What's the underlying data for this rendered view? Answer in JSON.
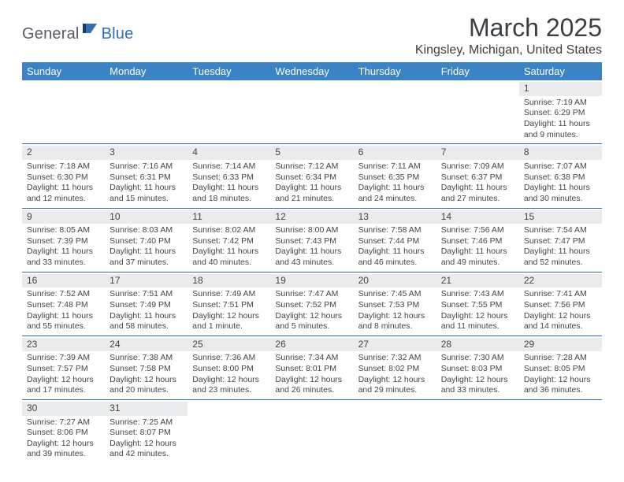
{
  "logo": {
    "text1": "General",
    "text2": "Blue",
    "accent_color": "#2f6fb2"
  },
  "title": "March 2025",
  "location": "Kingsley, Michigan, United States",
  "colors": {
    "header_bg": "#3b83c7",
    "header_text": "#ffffff",
    "row_divider": "#2f6fb2",
    "daynum_bg": "#e9ebec",
    "body_text": "#444444",
    "page_bg": "#ffffff"
  },
  "dayHeaders": [
    "Sunday",
    "Monday",
    "Tuesday",
    "Wednesday",
    "Thursday",
    "Friday",
    "Saturday"
  ],
  "weeks": [
    [
      null,
      null,
      null,
      null,
      null,
      null,
      {
        "n": "1",
        "sunrise": "Sunrise: 7:19 AM",
        "sunset": "Sunset: 6:29 PM",
        "daylight": "Daylight: 11 hours and 9 minutes."
      }
    ],
    [
      {
        "n": "2",
        "sunrise": "Sunrise: 7:18 AM",
        "sunset": "Sunset: 6:30 PM",
        "daylight": "Daylight: 11 hours and 12 minutes."
      },
      {
        "n": "3",
        "sunrise": "Sunrise: 7:16 AM",
        "sunset": "Sunset: 6:31 PM",
        "daylight": "Daylight: 11 hours and 15 minutes."
      },
      {
        "n": "4",
        "sunrise": "Sunrise: 7:14 AM",
        "sunset": "Sunset: 6:33 PM",
        "daylight": "Daylight: 11 hours and 18 minutes."
      },
      {
        "n": "5",
        "sunrise": "Sunrise: 7:12 AM",
        "sunset": "Sunset: 6:34 PM",
        "daylight": "Daylight: 11 hours and 21 minutes."
      },
      {
        "n": "6",
        "sunrise": "Sunrise: 7:11 AM",
        "sunset": "Sunset: 6:35 PM",
        "daylight": "Daylight: 11 hours and 24 minutes."
      },
      {
        "n": "7",
        "sunrise": "Sunrise: 7:09 AM",
        "sunset": "Sunset: 6:37 PM",
        "daylight": "Daylight: 11 hours and 27 minutes."
      },
      {
        "n": "8",
        "sunrise": "Sunrise: 7:07 AM",
        "sunset": "Sunset: 6:38 PM",
        "daylight": "Daylight: 11 hours and 30 minutes."
      }
    ],
    [
      {
        "n": "9",
        "sunrise": "Sunrise: 8:05 AM",
        "sunset": "Sunset: 7:39 PM",
        "daylight": "Daylight: 11 hours and 33 minutes."
      },
      {
        "n": "10",
        "sunrise": "Sunrise: 8:03 AM",
        "sunset": "Sunset: 7:40 PM",
        "daylight": "Daylight: 11 hours and 37 minutes."
      },
      {
        "n": "11",
        "sunrise": "Sunrise: 8:02 AM",
        "sunset": "Sunset: 7:42 PM",
        "daylight": "Daylight: 11 hours and 40 minutes."
      },
      {
        "n": "12",
        "sunrise": "Sunrise: 8:00 AM",
        "sunset": "Sunset: 7:43 PM",
        "daylight": "Daylight: 11 hours and 43 minutes."
      },
      {
        "n": "13",
        "sunrise": "Sunrise: 7:58 AM",
        "sunset": "Sunset: 7:44 PM",
        "daylight": "Daylight: 11 hours and 46 minutes."
      },
      {
        "n": "14",
        "sunrise": "Sunrise: 7:56 AM",
        "sunset": "Sunset: 7:46 PM",
        "daylight": "Daylight: 11 hours and 49 minutes."
      },
      {
        "n": "15",
        "sunrise": "Sunrise: 7:54 AM",
        "sunset": "Sunset: 7:47 PM",
        "daylight": "Daylight: 11 hours and 52 minutes."
      }
    ],
    [
      {
        "n": "16",
        "sunrise": "Sunrise: 7:52 AM",
        "sunset": "Sunset: 7:48 PM",
        "daylight": "Daylight: 11 hours and 55 minutes."
      },
      {
        "n": "17",
        "sunrise": "Sunrise: 7:51 AM",
        "sunset": "Sunset: 7:49 PM",
        "daylight": "Daylight: 11 hours and 58 minutes."
      },
      {
        "n": "18",
        "sunrise": "Sunrise: 7:49 AM",
        "sunset": "Sunset: 7:51 PM",
        "daylight": "Daylight: 12 hours and 1 minute."
      },
      {
        "n": "19",
        "sunrise": "Sunrise: 7:47 AM",
        "sunset": "Sunset: 7:52 PM",
        "daylight": "Daylight: 12 hours and 5 minutes."
      },
      {
        "n": "20",
        "sunrise": "Sunrise: 7:45 AM",
        "sunset": "Sunset: 7:53 PM",
        "daylight": "Daylight: 12 hours and 8 minutes."
      },
      {
        "n": "21",
        "sunrise": "Sunrise: 7:43 AM",
        "sunset": "Sunset: 7:55 PM",
        "daylight": "Daylight: 12 hours and 11 minutes."
      },
      {
        "n": "22",
        "sunrise": "Sunrise: 7:41 AM",
        "sunset": "Sunset: 7:56 PM",
        "daylight": "Daylight: 12 hours and 14 minutes."
      }
    ],
    [
      {
        "n": "23",
        "sunrise": "Sunrise: 7:39 AM",
        "sunset": "Sunset: 7:57 PM",
        "daylight": "Daylight: 12 hours and 17 minutes."
      },
      {
        "n": "24",
        "sunrise": "Sunrise: 7:38 AM",
        "sunset": "Sunset: 7:58 PM",
        "daylight": "Daylight: 12 hours and 20 minutes."
      },
      {
        "n": "25",
        "sunrise": "Sunrise: 7:36 AM",
        "sunset": "Sunset: 8:00 PM",
        "daylight": "Daylight: 12 hours and 23 minutes."
      },
      {
        "n": "26",
        "sunrise": "Sunrise: 7:34 AM",
        "sunset": "Sunset: 8:01 PM",
        "daylight": "Daylight: 12 hours and 26 minutes."
      },
      {
        "n": "27",
        "sunrise": "Sunrise: 7:32 AM",
        "sunset": "Sunset: 8:02 PM",
        "daylight": "Daylight: 12 hours and 29 minutes."
      },
      {
        "n": "28",
        "sunrise": "Sunrise: 7:30 AM",
        "sunset": "Sunset: 8:03 PM",
        "daylight": "Daylight: 12 hours and 33 minutes."
      },
      {
        "n": "29",
        "sunrise": "Sunrise: 7:28 AM",
        "sunset": "Sunset: 8:05 PM",
        "daylight": "Daylight: 12 hours and 36 minutes."
      }
    ],
    [
      {
        "n": "30",
        "sunrise": "Sunrise: 7:27 AM",
        "sunset": "Sunset: 8:06 PM",
        "daylight": "Daylight: 12 hours and 39 minutes."
      },
      {
        "n": "31",
        "sunrise": "Sunrise: 7:25 AM",
        "sunset": "Sunset: 8:07 PM",
        "daylight": "Daylight: 12 hours and 42 minutes."
      },
      null,
      null,
      null,
      null,
      null
    ]
  ]
}
